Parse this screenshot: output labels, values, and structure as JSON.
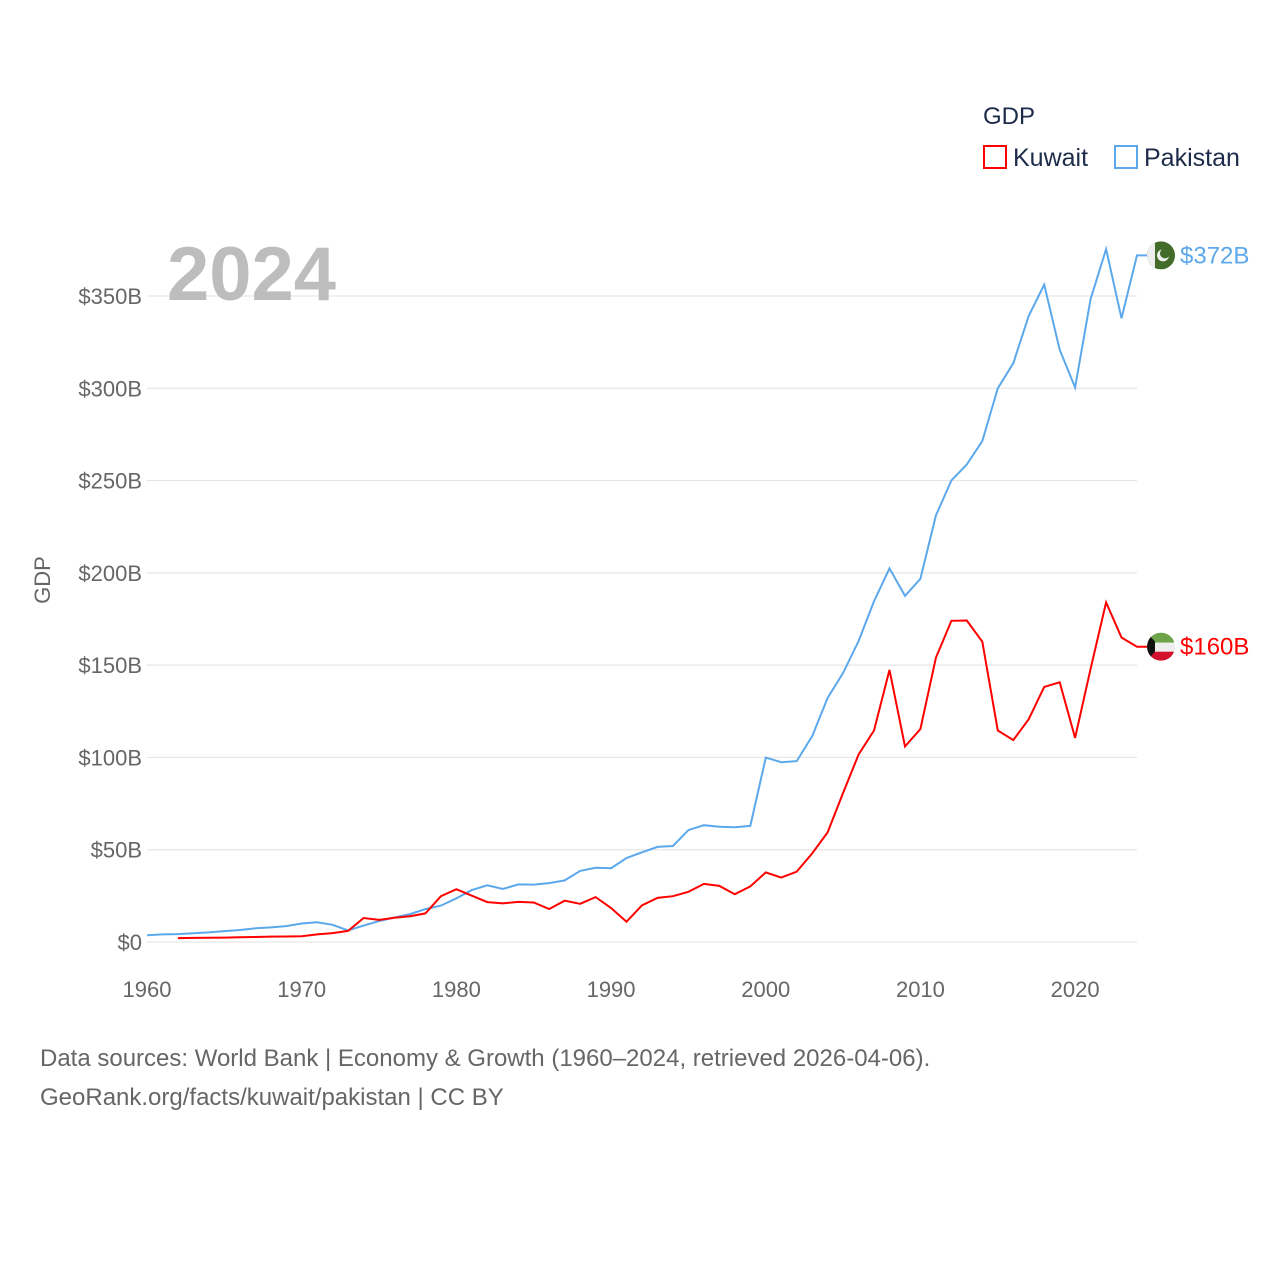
{
  "chart_data": {
    "type": "line",
    "title": "",
    "year_label": "2024",
    "xlabel": "",
    "ylabel": "GDP",
    "xlim": [
      1960,
      2024
    ],
    "ylim": [
      0,
      350
    ],
    "x_ticks": [
      "1960",
      "1970",
      "1980",
      "1990",
      "2000",
      "2010",
      "2020"
    ],
    "y_ticks": [
      {
        "value": 0,
        "label": "$0"
      },
      {
        "value": 50,
        "label": "$50B"
      },
      {
        "value": 100,
        "label": "$100B"
      },
      {
        "value": 150,
        "label": "$150B"
      },
      {
        "value": 200,
        "label": "$200B"
      },
      {
        "value": 250,
        "label": "$250B"
      },
      {
        "value": 300,
        "label": "$300B"
      },
      {
        "value": 350,
        "label": "$350B"
      }
    ],
    "grid": true,
    "legend": {
      "title": "GDP",
      "position": "top-right"
    },
    "series": [
      {
        "name": "Kuwait",
        "color": "#ff0000",
        "start_year": 1962,
        "end_label": "$160B",
        "flag": "kuwait-flag",
        "values": [
          2.1,
          2.2,
          2.3,
          2.4,
          2.6,
          2.7,
          2.9,
          3.0,
          3.1,
          4.1,
          4.8,
          6.0,
          13.0,
          12.0,
          13.1,
          14.0,
          15.5,
          24.8,
          28.6,
          25.1,
          21.6,
          20.9,
          21.7,
          21.4,
          17.9,
          22.4,
          20.7,
          24.3,
          18.4,
          11.0,
          19.9,
          23.9,
          24.8,
          27.2,
          31.5,
          30.4,
          25.9,
          30.1,
          37.7,
          34.9,
          38.1,
          48.0,
          59.4,
          80.8,
          101.6,
          114.6,
          147.4,
          105.9,
          115.4,
          154.0,
          174.0,
          174.2,
          162.7,
          114.6,
          109.4,
          120.7,
          138.2,
          140.7,
          110.6,
          148.0,
          184.0,
          165.0,
          160.0
        ]
      },
      {
        "name": "Pakistan",
        "color": "#5ca8ec",
        "start_year": 1960,
        "end_label": "$372B",
        "flag": "pakistan-flag",
        "values": [
          3.7,
          4.1,
          4.3,
          4.7,
          5.2,
          5.9,
          6.5,
          7.4,
          7.9,
          8.6,
          10.0,
          10.7,
          9.3,
          6.3,
          8.9,
          11.3,
          13.3,
          15.1,
          17.8,
          19.7,
          23.7,
          28.1,
          30.7,
          28.7,
          31.2,
          31.1,
          31.9,
          33.4,
          38.5,
          40.2,
          40.0,
          45.5,
          48.6,
          51.5,
          52.0,
          60.6,
          63.3,
          62.4,
          62.2,
          62.9,
          99.9,
          97.4,
          98.0,
          111.5,
          132.2,
          145.8,
          163.1,
          184.6,
          202.4,
          187.5,
          196.8,
          231.1,
          250.1,
          258.7,
          271.4,
          300.0,
          313.6,
          339.2,
          356.1,
          320.9,
          300.4,
          348.3,
          375.4,
          337.9,
          372.0
        ]
      }
    ]
  },
  "footer": {
    "line1": "Data sources: World Bank | Economy & Growth (1960–2024, retrieved 2026-04-06).",
    "line2": "GeoRank.org/facts/kuwait/pakistan | CC BY"
  }
}
